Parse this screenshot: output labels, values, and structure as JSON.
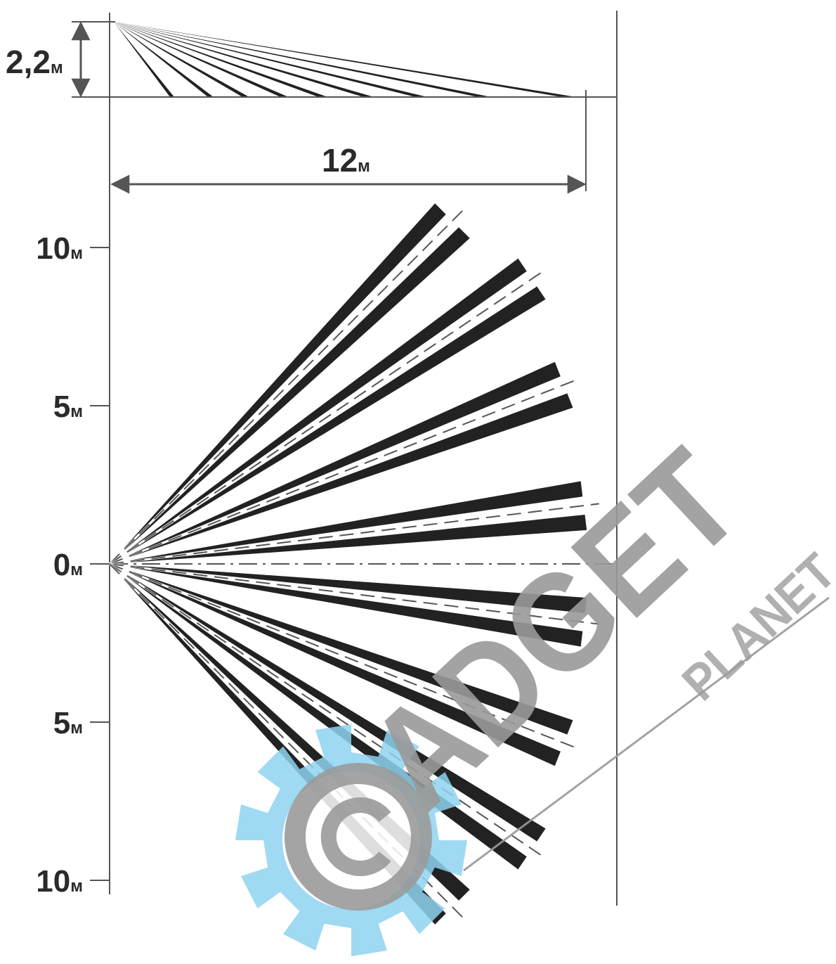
{
  "height_dimension": {
    "value": "2,2",
    "unit": "м"
  },
  "width_dimension": {
    "value": "12",
    "unit": "м"
  },
  "axis_ticks": [
    {
      "value": "10",
      "unit": "м"
    },
    {
      "value": "5",
      "unit": "м"
    },
    {
      "value": "0",
      "unit": "м"
    },
    {
      "value": "5",
      "unit": "м"
    },
    {
      "value": "10",
      "unit": "м"
    }
  ],
  "zone_count": 8,
  "colors": {
    "line": "#555555",
    "beam": "#222222",
    "watermark_gear": "#8fd3f0",
    "watermark_text": "#9a9a9a"
  },
  "watermark": {
    "brand": "GADGET",
    "brand_visible": "ADGET",
    "tagline": "PLANET",
    "icons": [
      "gear-icon",
      "copyright-icon"
    ]
  }
}
